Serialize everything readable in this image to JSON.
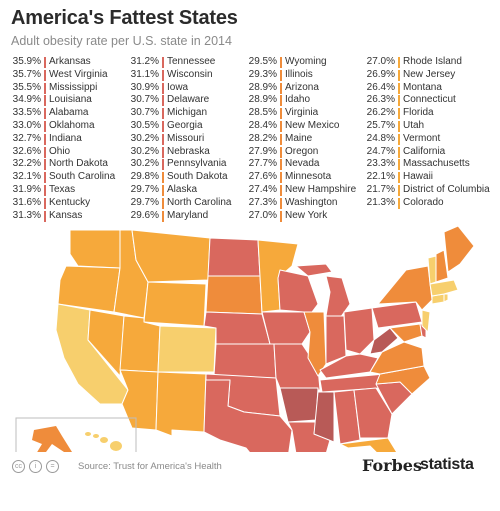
{
  "colors": {
    "c1": "#d9685e",
    "c2": "#ef8c3b",
    "c3": "#f6a93b",
    "c4": "#f7cf6d",
    "bg": "#ffffff"
  },
  "footer": {
    "source": "Source: Trust for America's Health",
    "brand1": "Forbes",
    "brand2": "statista"
  },
  "chart_data": {
    "type": "table",
    "title": "America's Fattest States",
    "subtitle": "Adult obesity rate per U.S. state in 2014",
    "rows": [
      {
        "state": "Arkansas",
        "value": "35.9%",
        "tier": 1
      },
      {
        "state": "West Virginia",
        "value": "35.7%",
        "tier": 1
      },
      {
        "state": "Mississippi",
        "value": "35.5%",
        "tier": 1
      },
      {
        "state": "Louisiana",
        "value": "34.9%",
        "tier": 1
      },
      {
        "state": "Alabama",
        "value": "33.5%",
        "tier": 1
      },
      {
        "state": "Oklahoma",
        "value": "33.0%",
        "tier": 1
      },
      {
        "state": "Indiana",
        "value": "32.7%",
        "tier": 1
      },
      {
        "state": "Ohio",
        "value": "32.6%",
        "tier": 1
      },
      {
        "state": "North Dakota",
        "value": "32.2%",
        "tier": 1
      },
      {
        "state": "South Carolina",
        "value": "32.1%",
        "tier": 1
      },
      {
        "state": "Texas",
        "value": "31.9%",
        "tier": 1
      },
      {
        "state": "Kentucky",
        "value": "31.6%",
        "tier": 1
      },
      {
        "state": "Kansas",
        "value": "31.3%",
        "tier": 1
      },
      {
        "state": "Tennessee",
        "value": "31.2%",
        "tier": 1
      },
      {
        "state": "Wisconsin",
        "value": "31.1%",
        "tier": 1
      },
      {
        "state": "Iowa",
        "value": "30.9%",
        "tier": 1
      },
      {
        "state": "Delaware",
        "value": "30.7%",
        "tier": 1
      },
      {
        "state": "Michigan",
        "value": "30.7%",
        "tier": 1
      },
      {
        "state": "Georgia",
        "value": "30.5%",
        "tier": 1
      },
      {
        "state": "Missouri",
        "value": "30.2%",
        "tier": 1
      },
      {
        "state": "Nebraska",
        "value": "30.2%",
        "tier": 1
      },
      {
        "state": "Pennsylvania",
        "value": "30.2%",
        "tier": 1
      },
      {
        "state": "South Dakota",
        "value": "29.8%",
        "tier": 2
      },
      {
        "state": "Alaska",
        "value": "29.7%",
        "tier": 2
      },
      {
        "state": "North Carolina",
        "value": "29.7%",
        "tier": 2
      },
      {
        "state": "Maryland",
        "value": "29.6%",
        "tier": 2
      },
      {
        "state": "Wyoming",
        "value": "29.5%",
        "tier": 2
      },
      {
        "state": "Illinois",
        "value": "29.3%",
        "tier": 2
      },
      {
        "state": "Arizona",
        "value": "28.9%",
        "tier": 2
      },
      {
        "state": "Idaho",
        "value": "28.9%",
        "tier": 2
      },
      {
        "state": "Virginia",
        "value": "28.5%",
        "tier": 2
      },
      {
        "state": "New Mexico",
        "value": "28.4%",
        "tier": 2
      },
      {
        "state": "Maine",
        "value": "28.2%",
        "tier": 2
      },
      {
        "state": "Oregon",
        "value": "27.9%",
        "tier": 2
      },
      {
        "state": "Nevada",
        "value": "27.7%",
        "tier": 2
      },
      {
        "state": "Minnesota",
        "value": "27.6%",
        "tier": 2
      },
      {
        "state": "New Hampshire",
        "value": "27.4%",
        "tier": 2
      },
      {
        "state": "Washington",
        "value": "27.3%",
        "tier": 2
      },
      {
        "state": "New York",
        "value": "27.0%",
        "tier": 2
      },
      {
        "state": "Rhode Island",
        "value": "27.0%",
        "tier": 3
      },
      {
        "state": "New Jersey",
        "value": "26.9%",
        "tier": 3
      },
      {
        "state": "Montana",
        "value": "26.4%",
        "tier": 3
      },
      {
        "state": "Connecticut",
        "value": "26.3%",
        "tier": 3
      },
      {
        "state": "Florida",
        "value": "26.2%",
        "tier": 3
      },
      {
        "state": "Utah",
        "value": "25.7%",
        "tier": 3
      },
      {
        "state": "Vermont",
        "value": "24.8%",
        "tier": 3
      },
      {
        "state": "California",
        "value": "24.7%",
        "tier": 3
      },
      {
        "state": "Massachusetts",
        "value": "23.3%",
        "tier": 3
      },
      {
        "state": "Hawaii",
        "value": "22.1%",
        "tier": 3
      },
      {
        "state": "District of Columbia",
        "value": "21.7%",
        "tier": 3
      },
      {
        "state": "Colorado",
        "value": "21.3%",
        "tier": 3
      }
    ]
  }
}
